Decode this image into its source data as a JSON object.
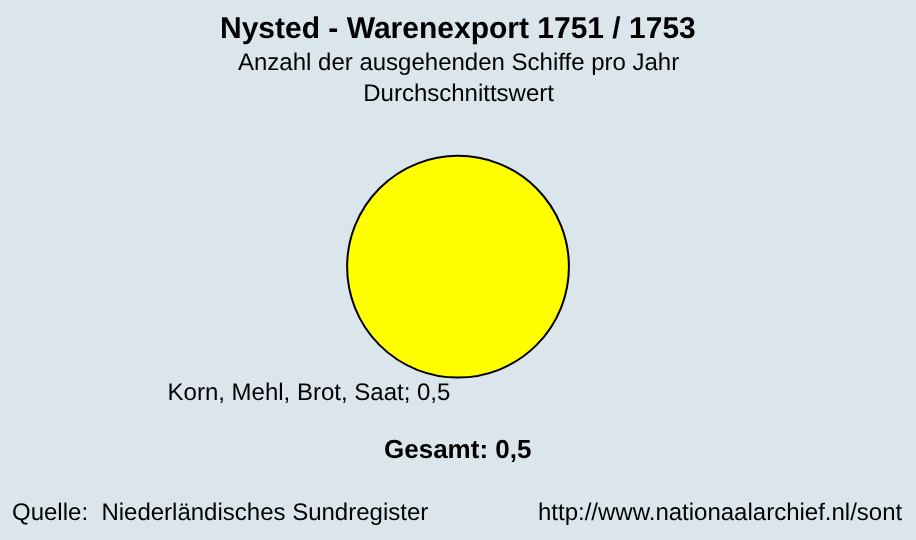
{
  "chart_data": {
    "type": "pie",
    "title": "Nysted - Warenexport 1751 / 1753",
    "subtitle": "Anzahl der ausgehenden Schiffe pro Jahr\nDurchschnittswert",
    "categories": [
      "Korn, Mehl, Brot, Saat; 0,5"
    ],
    "values": [
      100
    ],
    "colors": [
      "#ffff00"
    ],
    "legend": false,
    "annotations": [
      "Gesamt: 0,5",
      "Quelle:  Niederländisches Sundregister",
      "http://www.nationaalarchief.nl/sont"
    ]
  }
}
